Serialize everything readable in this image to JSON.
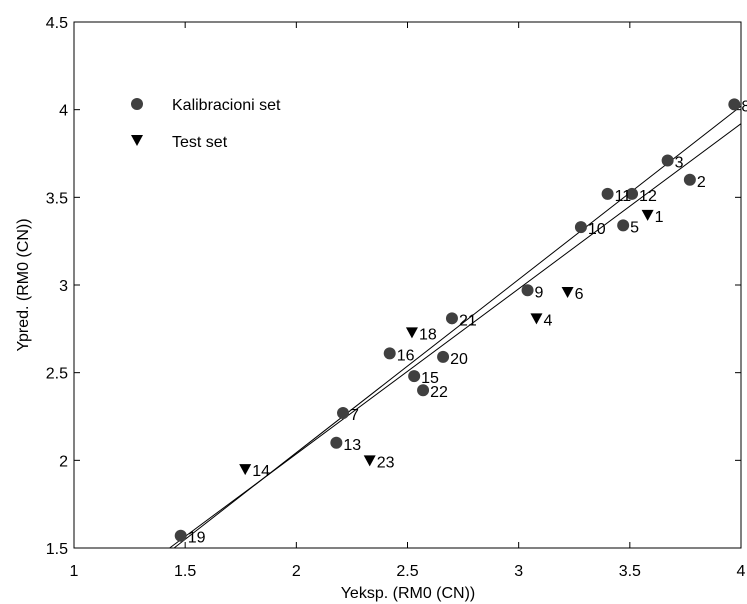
{
  "chart_data": {
    "type": "scatter",
    "xlabel": "Yeksp. (RM0 (CN))",
    "ylabel": "Ypred. (RM0 (CN))",
    "xlim": [
      1,
      4
    ],
    "ylim": [
      1.5,
      4.5
    ],
    "xticks": [
      "1",
      "1.5",
      "2",
      "2.5",
      "3",
      "3.5",
      "4"
    ],
    "yticks": [
      "1.5",
      "2",
      "2.5",
      "3",
      "3.5",
      "4",
      "4.5"
    ],
    "grid": false,
    "legend": "top-left",
    "colors": {
      "calibration": "#404040",
      "test": "#000000",
      "line": "#000000"
    },
    "series": [
      {
        "name": "Kalibracioni set",
        "marker": "circle",
        "points": [
          {
            "x": 3.77,
            "y": 3.6,
            "label": "2"
          },
          {
            "x": 3.67,
            "y": 3.71,
            "label": "3"
          },
          {
            "x": 3.47,
            "y": 3.34,
            "label": "5"
          },
          {
            "x": 2.21,
            "y": 2.27,
            "label": "7"
          },
          {
            "x": 3.97,
            "y": 4.03,
            "label": "8"
          },
          {
            "x": 3.04,
            "y": 2.97,
            "label": "9"
          },
          {
            "x": 3.28,
            "y": 3.33,
            "label": "10"
          },
          {
            "x": 3.4,
            "y": 3.52,
            "label": "11"
          },
          {
            "x": 3.51,
            "y": 3.52,
            "label": "12"
          },
          {
            "x": 2.18,
            "y": 2.1,
            "label": "13"
          },
          {
            "x": 2.53,
            "y": 2.48,
            "label": "15"
          },
          {
            "x": 2.42,
            "y": 2.61,
            "label": "16"
          },
          {
            "x": 1.48,
            "y": 1.57,
            "label": "19"
          },
          {
            "x": 2.66,
            "y": 2.59,
            "label": "20"
          },
          {
            "x": 2.7,
            "y": 2.81,
            "label": "21"
          },
          {
            "x": 2.57,
            "y": 2.4,
            "label": "22"
          }
        ]
      },
      {
        "name": "Test set",
        "marker": "triangle-down",
        "points": [
          {
            "x": 3.58,
            "y": 3.4,
            "label": "1"
          },
          {
            "x": 3.08,
            "y": 2.81,
            "label": "4"
          },
          {
            "x": 3.22,
            "y": 2.96,
            "label": "6"
          },
          {
            "x": 1.77,
            "y": 1.95,
            "label": "14"
          },
          {
            "x": 2.52,
            "y": 2.73,
            "label": "18"
          },
          {
            "x": 2.33,
            "y": 2.0,
            "label": "23"
          }
        ]
      }
    ],
    "fit_lines": [
      {
        "x": [
          1.43,
          4.0
        ],
        "y": [
          1.5,
          3.92
        ]
      },
      {
        "x": [
          1.45,
          4.0
        ],
        "y": [
          1.5,
          4.02
        ]
      }
    ]
  }
}
